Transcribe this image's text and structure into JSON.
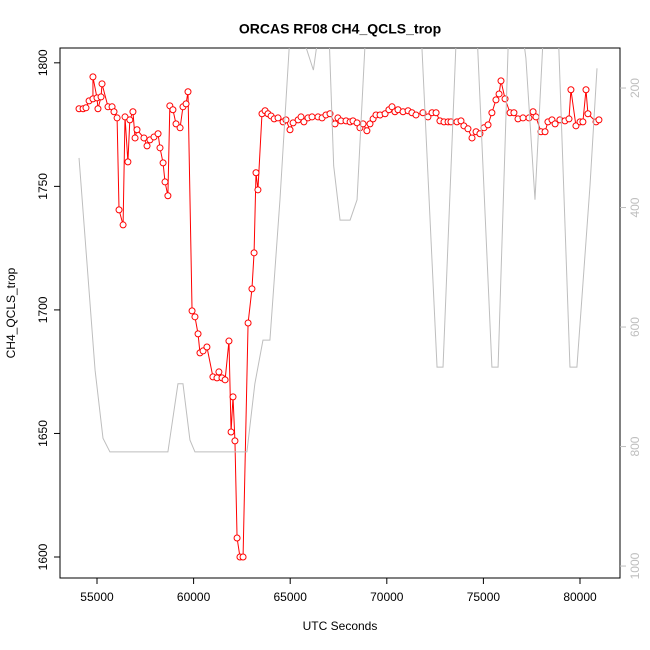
{
  "chart_data": {
    "type": "line",
    "title": "ORCAS RF08 CH4_QCLS_trop",
    "x_label": "UTC Seconds",
    "y_label": "CH4_QCLS_trop",
    "xlim": [
      53085,
      82070
    ],
    "xticks": [
      55000,
      60000,
      65000,
      70000,
      75000,
      80000
    ],
    "ylim": [
      1591.5,
      1806
    ],
    "yticks": [
      1600,
      1650,
      1700,
      1750,
      1800
    ],
    "y2lim": [
      1020,
      133
    ],
    "y2ticks": [
      200,
      400,
      600,
      800,
      1000
    ],
    "series": [
      {
        "color": "#ff0000",
        "markers": true,
        "x": [
          54070,
          54280,
          54430,
          54590,
          54790,
          54790,
          55000,
          55050,
          55210,
          55260,
          55570,
          55780,
          55880,
          56040,
          56140,
          56350,
          56450,
          56600,
          56700,
          56860,
          56970,
          57070,
          57430,
          57590,
          57740,
          57950,
          58160,
          58260,
          58420,
          58520,
          58670,
          58770,
          58930,
          59090,
          59300,
          59450,
          59610,
          59710,
          59920,
          60070,
          60230,
          60330,
          60490,
          60690,
          61000,
          61210,
          61310,
          61470,
          61630,
          61830,
          61940,
          62040,
          62140,
          62250,
          62400,
          62560,
          62820,
          63020,
          63130,
          63230,
          63330,
          63540,
          63700,
          63850,
          64010,
          64170,
          64370,
          64630,
          64780,
          64990,
          65150,
          65410,
          65560,
          65710,
          65920,
          66130,
          66440,
          66650,
          66850,
          67060,
          67320,
          67470,
          67630,
          67890,
          68100,
          68250,
          68460,
          68610,
          68770,
          68970,
          69130,
          69290,
          69440,
          69650,
          69910,
          70110,
          70270,
          70420,
          70580,
          70840,
          71100,
          71300,
          71510,
          71870,
          72130,
          72340,
          72550,
          72750,
          72960,
          73170,
          73320,
          73630,
          73840,
          73990,
          74200,
          74410,
          74620,
          74820,
          75030,
          75240,
          75440,
          75650,
          75810,
          75910,
          76120,
          76380,
          76580,
          76790,
          77050,
          77360,
          77570,
          77720,
          77980,
          78190,
          78340,
          78550,
          78710,
          78960,
          79220,
          79430,
          79530,
          79790,
          80000,
          80150,
          80310,
          80410,
          80830,
          80980
        ],
        "values": [
          1781.4,
          1781.4,
          1781.8,
          1784.6,
          1785.4,
          1794.3,
          1785.8,
          1781.4,
          1786.2,
          1791.5,
          1782.2,
          1782.2,
          1780.2,
          1777.7,
          1740.5,
          1734.4,
          1778.1,
          1759.9,
          1776.9,
          1780.2,
          1769.6,
          1772.9,
          1769.6,
          1766.4,
          1768.8,
          1770.0,
          1771.3,
          1765.6,
          1759.5,
          1751.8,
          1746.2,
          1782.6,
          1781.0,
          1775.3,
          1773.7,
          1782.2,
          1783.4,
          1788.3,
          1699.6,
          1697.2,
          1690.3,
          1682.6,
          1683.4,
          1685.0,
          1672.9,
          1672.5,
          1674.9,
          1672.5,
          1671.7,
          1687.4,
          1650.6,
          1664.8,
          1647.0,
          1607.7,
          1600.0,
          1600.0,
          1694.7,
          1708.5,
          1723.1,
          1755.5,
          1748.6,
          1779.4,
          1780.6,
          1779.4,
          1778.5,
          1777.3,
          1777.7,
          1776.1,
          1776.9,
          1772.9,
          1775.7,
          1776.9,
          1778.1,
          1776.1,
          1777.7,
          1778.1,
          1778.1,
          1777.7,
          1778.9,
          1779.4,
          1775.3,
          1777.7,
          1776.5,
          1776.5,
          1776.1,
          1776.5,
          1775.7,
          1773.7,
          1775.3,
          1772.5,
          1775.3,
          1777.3,
          1778.9,
          1778.9,
          1779.4,
          1781.0,
          1782.2,
          1780.2,
          1781.0,
          1780.2,
          1780.6,
          1779.8,
          1778.9,
          1779.8,
          1778.1,
          1779.8,
          1779.8,
          1776.5,
          1776.1,
          1776.1,
          1776.1,
          1776.1,
          1776.5,
          1774.5,
          1773.3,
          1769.6,
          1772.1,
          1771.3,
          1773.7,
          1774.9,
          1779.8,
          1785.0,
          1787.4,
          1792.7,
          1785.4,
          1779.8,
          1779.8,
          1777.3,
          1777.7,
          1777.7,
          1780.2,
          1778.1,
          1772.1,
          1772.1,
          1776.1,
          1776.9,
          1775.3,
          1776.9,
          1776.5,
          1777.3,
          1789.1,
          1774.5,
          1776.1,
          1776.1,
          1789.1,
          1779.4,
          1776.1,
          1776.9
        ]
      },
      {
        "color": "#bebebe",
        "axis": "y2",
        "markers": false,
        "x": [
          54070,
          54900,
          55310,
          55670,
          58670,
          59190,
          59450,
          59810,
          60070,
          62760,
          63170,
          63590,
          63950,
          64470,
          64990,
          65500,
          66200,
          66500,
          67000,
          67250,
          67580,
          68100,
          68460,
          68900,
          69800,
          70200,
          71000,
          71800,
          72600,
          72910,
          73600,
          74300,
          74700,
          75440,
          75760,
          76300,
          77000,
          77200,
          77670,
          78100,
          78500,
          78900,
          79480,
          79840,
          80520,
          80880
        ],
        "values": [
          317,
          672,
          786,
          809,
          809,
          695,
          695,
          789,
          809,
          809,
          695,
          622,
          622,
          387,
          110,
          100,
          170,
          100,
          100,
          330,
          421,
          421,
          387,
          110,
          100,
          110,
          100,
          120,
          667,
          667,
          110,
          100,
          130,
          667,
          667,
          110,
          100,
          150,
          387,
          110,
          100,
          130,
          667,
          667,
          362,
          167
        ]
      }
    ]
  }
}
